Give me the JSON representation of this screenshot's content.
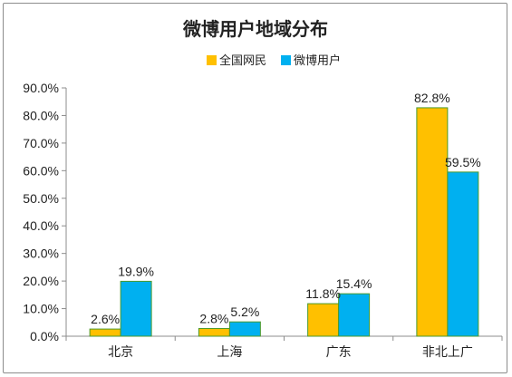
{
  "chart_data": {
    "type": "bar",
    "title": "微博用户地域分布",
    "categories": [
      "北京",
      "上海",
      "广东",
      "非北上广"
    ],
    "series": [
      {
        "name": "全国网民",
        "values": [
          2.6,
          2.8,
          11.8,
          82.8
        ],
        "labels": [
          "2.6%",
          "2.8%",
          "11.8%",
          "82.8%"
        ],
        "color": "#FFC000",
        "stroke": "#4A9A2E"
      },
      {
        "name": "微博用户",
        "values": [
          19.9,
          5.2,
          15.4,
          59.5
        ],
        "labels": [
          "19.9%",
          "5.2%",
          "15.4%",
          "59.5%"
        ],
        "color": "#00B0F0",
        "stroke": "#4A9A2E"
      }
    ],
    "yticks": [
      "0.0%",
      "10.0%",
      "20.0%",
      "30.0%",
      "40.0%",
      "50.0%",
      "60.0%",
      "70.0%",
      "80.0%",
      "90.0%"
    ],
    "ylim": [
      0,
      90
    ],
    "xlabel": "",
    "ylabel": "",
    "grid": false,
    "legend_position": "top-right"
  }
}
